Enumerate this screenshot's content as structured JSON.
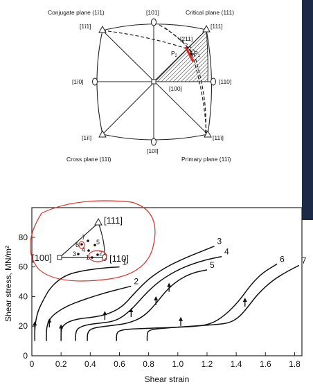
{
  "stereogram": {
    "conjugate_plane": "Conjugate plane (1ī1)",
    "critical_plane": "Critical plane (111)",
    "cross_plane": "Cross plane (11ī)",
    "primary_plane": "Primary plane (11ī)",
    "dir_101": "[101]",
    "dir_111": "[111]",
    "dir_1m11": "[1ī1]",
    "dir_1m10": "[1ī0]",
    "dir_110": "[110]",
    "dir_1m1m1": "[1īī]",
    "dir_10m1": "[10ī]",
    "dir_11m1": "[11ī]",
    "dir_100": "[100]",
    "dir_211": "[211]",
    "p1": "P",
    "p2": "P",
    "p1_sub": "1",
    "p2_sub": "2",
    "p1_mark_color": "#e0251b"
  },
  "chart": {
    "ylabel": "Shear stress, MN/m²",
    "xlabel": "Shear strain",
    "inset": {
      "v111": "[111]",
      "v100": "[100]",
      "v110": "[110]",
      "points": [
        "7",
        "6",
        "5",
        "4",
        "3",
        "2",
        "1"
      ]
    },
    "annotation_color": "#d9322a"
  },
  "chart_data": {
    "type": "line",
    "title": "",
    "xlabel": "Shear strain",
    "ylabel": "Shear stress, MN/m²",
    "xlim": [
      0,
      1.85
    ],
    "ylim": [
      0,
      100
    ],
    "xticks": [
      0,
      0.2,
      0.4,
      0.6,
      0.8,
      1.0,
      1.2,
      1.4,
      1.6,
      1.8
    ],
    "yticks": [
      0,
      20,
      40,
      60,
      80
    ],
    "grid": false,
    "series": [
      {
        "name": "1",
        "x": [
          0.02,
          0.02,
          0.04,
          0.08,
          0.12,
          0.18,
          0.25,
          0.33,
          0.42,
          0.52,
          0.6
        ],
        "y": [
          10,
          20,
          30,
          38,
          45,
          51,
          55,
          57,
          58.5,
          59.5,
          60
        ]
      },
      {
        "name": "2",
        "x": [
          0.1,
          0.1,
          0.13,
          0.18,
          0.25,
          0.33,
          0.42,
          0.52,
          0.6,
          0.68
        ],
        "y": [
          10,
          20,
          26,
          30,
          34,
          37,
          40,
          43,
          45,
          47
        ]
      },
      {
        "name": "3",
        "x": [
          0.2,
          0.2,
          0.21,
          0.25,
          0.32,
          0.42,
          0.52,
          0.62,
          0.7,
          0.8,
          0.92,
          1.05,
          1.15,
          1.25
        ],
        "y": [
          10,
          17,
          20,
          23,
          25,
          26,
          28,
          33,
          42,
          52,
          60,
          66,
          70,
          74
        ]
      },
      {
        "name": "4",
        "x": [
          0.3,
          0.3,
          0.32,
          0.38,
          0.46,
          0.55,
          0.62,
          0.7,
          0.78,
          0.88,
          1.0,
          1.1,
          1.2,
          1.3
        ],
        "y": [
          10,
          16,
          19,
          21,
          22,
          23,
          26,
          33,
          42,
          51,
          58,
          62,
          65,
          67
        ]
      },
      {
        "name": "5",
        "x": [
          0.38,
          0.38,
          0.4,
          0.46,
          0.56,
          0.66,
          0.76,
          0.84,
          0.92,
          1.0,
          1.1,
          1.2
        ],
        "y": [
          10,
          15,
          18,
          19.5,
          20.5,
          22,
          26,
          34,
          44,
          51,
          56,
          58
        ]
      },
      {
        "name": "6",
        "x": [
          0.58,
          0.58,
          0.6,
          0.66,
          0.78,
          0.92,
          1.08,
          1.22,
          1.32,
          1.42,
          1.5,
          1.58,
          1.68
        ],
        "y": [
          10,
          15,
          17,
          18,
          18.5,
          19,
          19.5,
          21,
          27,
          37,
          48,
          56,
          62
        ]
      },
      {
        "name": "7",
        "x": [
          0.79,
          0.79,
          0.8,
          0.84,
          0.95,
          1.1,
          1.25,
          1.35,
          1.42,
          1.48,
          1.55,
          1.65,
          1.75,
          1.83
        ],
        "y": [
          10,
          15,
          17,
          18,
          19,
          20,
          21,
          22,
          26,
          33,
          42,
          51,
          57,
          61
        ]
      }
    ],
    "arrows_at": [
      [
        0.02,
        20
      ],
      [
        0.12,
        22
      ],
      [
        0.2,
        18
      ],
      [
        0.5,
        27
      ],
      [
        0.68,
        29
      ],
      [
        0.85,
        37
      ],
      [
        0.94,
        46
      ],
      [
        1.02,
        23
      ],
      [
        1.46,
        36
      ]
    ]
  }
}
